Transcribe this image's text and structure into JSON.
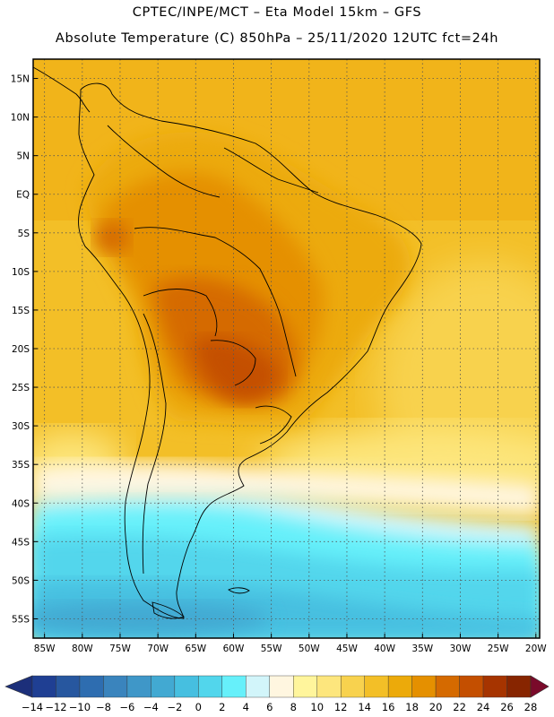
{
  "header": {
    "line1": "CPTEC/INPE/MCT –  Eta Model 15km – GFS",
    "line2": "Absolute Temperature (C) 850hPa – 25/11/2020 12UTC fct=24h"
  },
  "map": {
    "variable": "Absolute Temperature",
    "units": "C",
    "level": "850hPa",
    "lat_labels": [
      "15N",
      "10N",
      "5N",
      "EQ",
      "5S",
      "10S",
      "15S",
      "20S",
      "25S",
      "30S",
      "35S",
      "40S",
      "45S",
      "50S",
      "55S"
    ],
    "lon_labels": [
      "85W",
      "80W",
      "75W",
      "70W",
      "65W",
      "60W",
      "55W",
      "50W",
      "45W",
      "40W",
      "35W",
      "30W",
      "25W",
      "20W"
    ],
    "lat_values": [
      15,
      10,
      5,
      0,
      -5,
      -10,
      -15,
      -20,
      -25,
      -30,
      -35,
      -40,
      -45,
      -50,
      -55
    ],
    "lon_values": [
      -85,
      -80,
      -75,
      -70,
      -65,
      -60,
      -55,
      -50,
      -45,
      -40,
      -35,
      -30,
      -25,
      -20
    ],
    "lat_range": [
      -57.5,
      17.5
    ],
    "lon_range": [
      -86.5,
      -19.5
    ]
  },
  "legend": {
    "labels": [
      "-14",
      "-12",
      "-10",
      "-8",
      "-6",
      "-4",
      "-2",
      "0",
      "2",
      "4",
      "6",
      "8",
      "10",
      "12",
      "14",
      "16",
      "18",
      "20",
      "22",
      "24",
      "26",
      "28"
    ],
    "colors": [
      "#1f3f93",
      "#27579f",
      "#2e6db0",
      "#3a84bd",
      "#3f97c8",
      "#42a9d2",
      "#46bfe0",
      "#52d6ec",
      "#66f0fa",
      "#d2f5fa",
      "#fff6e0",
      "#fff59c",
      "#fde67d",
      "#f8d24e",
      "#f3bf27",
      "#ecaa0a",
      "#e59000",
      "#d56a00",
      "#c44f00",
      "#a63400",
      "#872500"
    ],
    "under_color": "#1c2f7a",
    "over_color": "#7a0a2a"
  }
}
